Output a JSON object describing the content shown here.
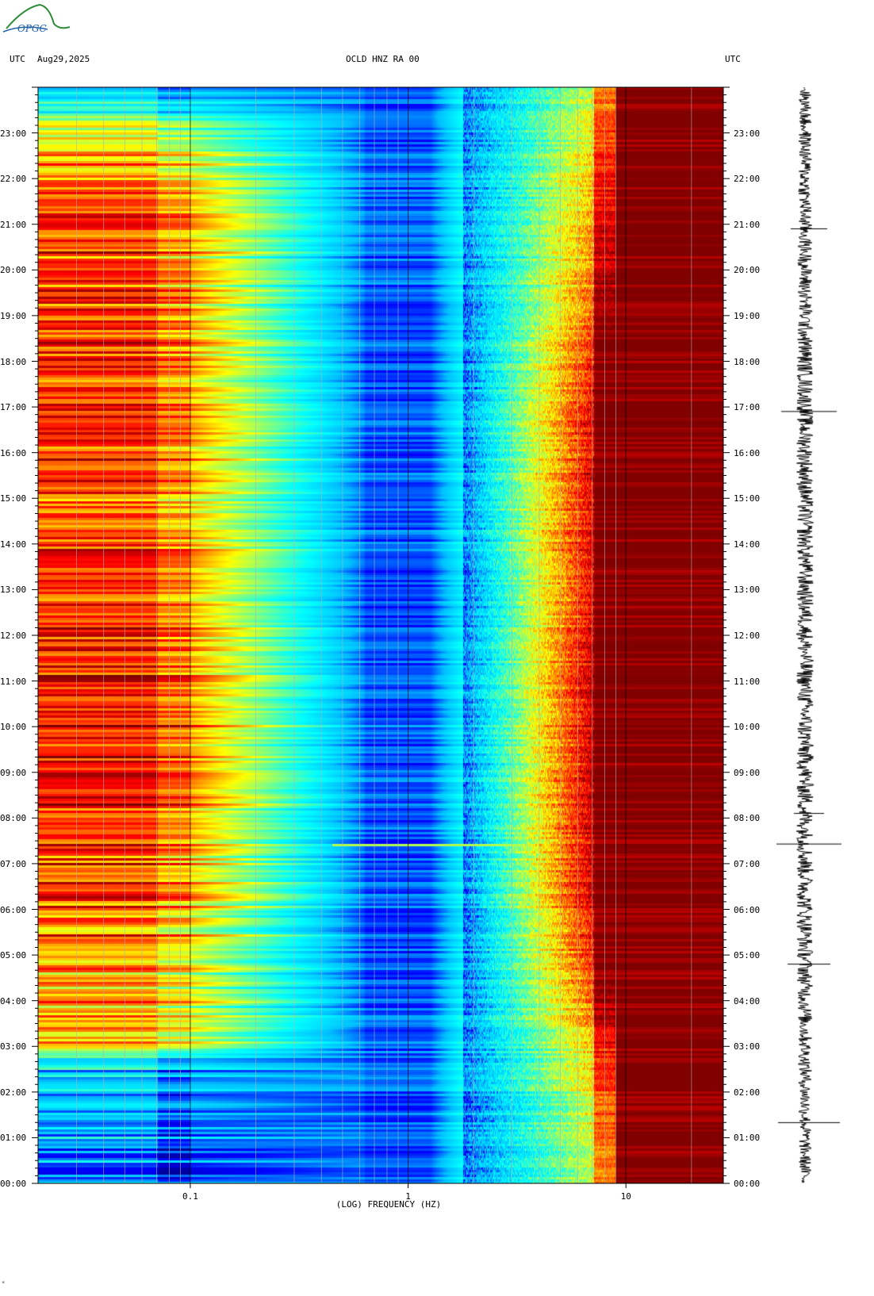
{
  "header": {
    "left_tz": "UTC",
    "date": "Aug29,2025",
    "station": "OCLD HNZ RA 00",
    "right_tz": "UTC"
  },
  "logo": {
    "text": "OPGC",
    "color_arc": "#2e8b3a",
    "color_text": "#1e5fa8"
  },
  "footer_mark": "*",
  "chart_data": {
    "type": "heatmap",
    "title": "OCLD HNZ RA 00",
    "xlabel": "(LOG) FREQUENCY (HZ)",
    "x_scale": "log",
    "xlim": [
      0.02,
      28
    ],
    "x_ticks": [
      {
        "value": 0.1,
        "label": "0.1"
      },
      {
        "value": 1,
        "label": "1"
      },
      {
        "value": 10,
        "label": "10"
      }
    ],
    "ylabel": "UTC",
    "ylim_hours": [
      0,
      24
    ],
    "y_ticks": [
      "00:00",
      "01:00",
      "02:00",
      "03:00",
      "04:00",
      "05:00",
      "06:00",
      "07:00",
      "08:00",
      "09:00",
      "10:00",
      "11:00",
      "12:00",
      "13:00",
      "14:00",
      "15:00",
      "16:00",
      "17:00",
      "18:00",
      "19:00",
      "20:00",
      "21:00",
      "22:00",
      "23:00"
    ],
    "colormap": [
      "#000080",
      "#0000ff",
      "#00bfff",
      "#00ffff",
      "#80ff80",
      "#ffff00",
      "#ff8000",
      "#ff0000",
      "#800000"
    ],
    "grid_lines_hz": [
      0.03,
      0.04,
      0.05,
      0.06,
      0.07,
      0.08,
      0.09,
      0.1,
      0.2,
      0.3,
      0.4,
      0.5,
      0.6,
      0.7,
      0.8,
      0.9,
      1,
      2,
      3,
      4,
      5,
      6,
      7,
      8,
      9,
      10,
      20
    ],
    "series": [
      {
        "name": "",
        "description_level_0_1": "low-frequency band (0.02–0.1 Hz) power by hour",
        "hours": [
          0,
          1,
          2,
          2.7,
          3,
          4,
          5,
          6,
          7,
          8,
          9,
          10,
          11,
          12,
          13,
          14,
          15,
          16,
          17,
          18,
          19,
          20,
          21,
          22,
          23,
          24
        ],
        "levels": [
          0.25,
          0.25,
          0.28,
          0.3,
          0.7,
          0.72,
          0.74,
          0.8,
          0.82,
          0.84,
          0.85,
          0.86,
          0.86,
          0.85,
          0.82,
          0.8,
          0.8,
          0.82,
          0.84,
          0.84,
          0.83,
          0.83,
          0.8,
          0.78,
          0.6,
          0.22
        ]
      },
      {
        "name": "",
        "description_level_0_1": "high-frequency band (>6 Hz) power by hour",
        "hours": [
          0,
          1,
          2,
          3,
          4,
          5,
          6,
          7,
          8,
          9,
          10,
          11,
          12,
          13,
          14,
          15,
          16,
          17,
          18,
          19,
          20,
          21,
          22,
          23,
          24
        ],
        "levels": [
          0.6,
          0.62,
          0.65,
          0.7,
          0.82,
          0.9,
          0.95,
          0.98,
          0.98,
          0.98,
          0.98,
          0.98,
          0.97,
          0.95,
          0.95,
          0.95,
          0.95,
          0.93,
          0.9,
          0.85,
          0.78,
          0.74,
          0.7,
          0.66,
          0.6
        ]
      },
      {
        "name": "",
        "description": "transient event near 07:26 UTC spanning ~0.5–3 Hz",
        "event_hour": 7.43
      }
    ]
  }
}
